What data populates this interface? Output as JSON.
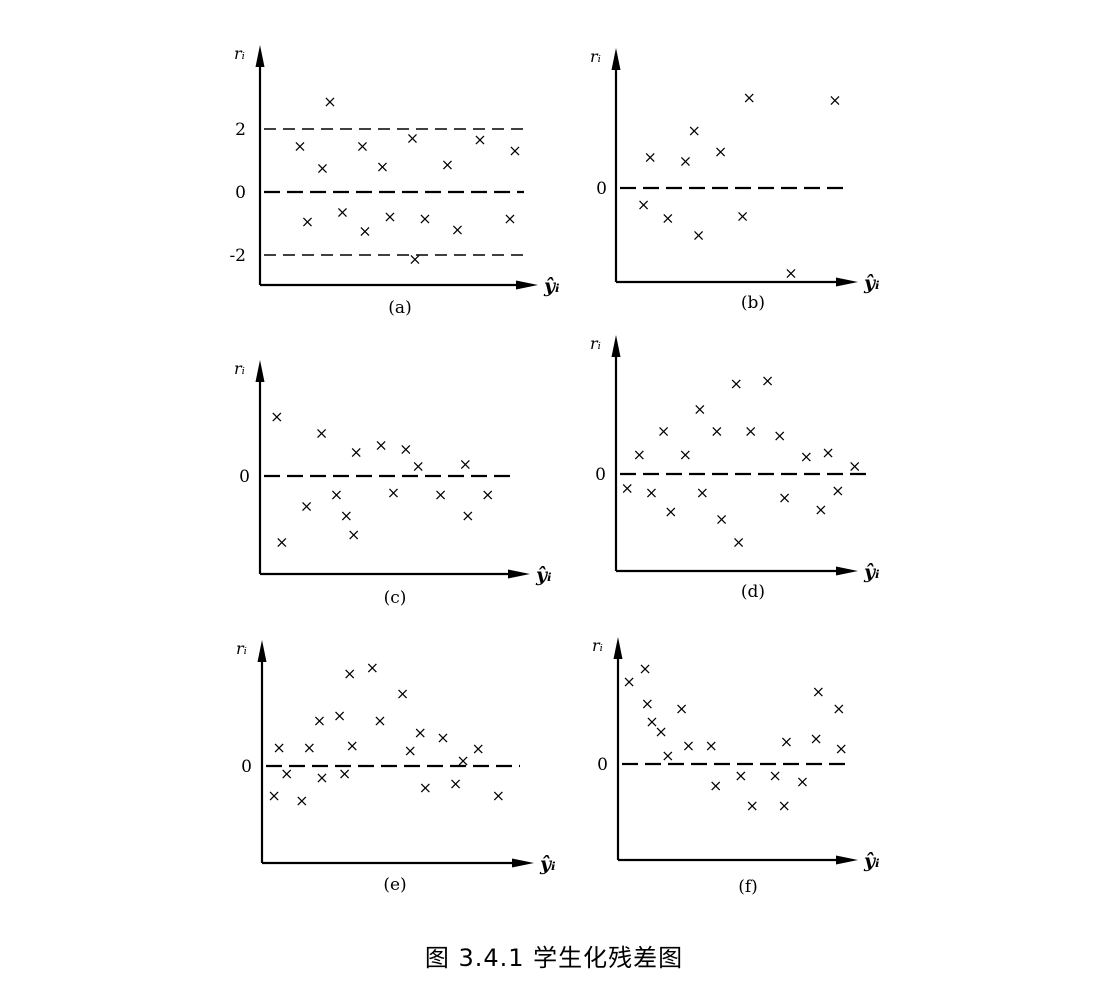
{
  "figure": {
    "caption": "图 3.4.1 学生化残差图"
  },
  "chart_data": [
    {
      "type": "scatter",
      "panel_label": "(a)",
      "ylabel": "rᵢ",
      "xlabel": "ŷᵢ",
      "y_ticks": [
        "2",
        "0",
        "-2"
      ],
      "reference_lines": [
        2,
        0,
        -2
      ],
      "marker": "x",
      "points": [
        {
          "x": 0.12,
          "y": 1.45
        },
        {
          "x": 0.21,
          "y": 0.75
        },
        {
          "x": 0.24,
          "y": 2.85
        },
        {
          "x": 0.37,
          "y": 1.45
        },
        {
          "x": 0.45,
          "y": 0.8
        },
        {
          "x": 0.57,
          "y": 1.7
        },
        {
          "x": 0.71,
          "y": 0.85
        },
        {
          "x": 0.84,
          "y": 1.65
        },
        {
          "x": 0.98,
          "y": 1.3
        },
        {
          "x": 0.15,
          "y": -0.95
        },
        {
          "x": 0.29,
          "y": -0.65
        },
        {
          "x": 0.38,
          "y": -1.25
        },
        {
          "x": 0.48,
          "y": -0.8
        },
        {
          "x": 0.62,
          "y": -0.85
        },
        {
          "x": 0.75,
          "y": -1.2
        },
        {
          "x": 0.96,
          "y": -0.85
        },
        {
          "x": 0.58,
          "y": -2.15
        }
      ]
    },
    {
      "type": "scatter",
      "panel_label": "(b)",
      "ylabel": "rᵢ",
      "xlabel": "ŷᵢ",
      "y_ticks": [
        "0"
      ],
      "reference_lines": [
        0
      ],
      "marker": "x",
      "points": [
        {
          "x": 0.11,
          "y": 0.32
        },
        {
          "x": 0.27,
          "y": 0.28
        },
        {
          "x": 0.31,
          "y": 0.6
        },
        {
          "x": 0.43,
          "y": 0.38
        },
        {
          "x": 0.56,
          "y": 0.95
        },
        {
          "x": 0.95,
          "y": 0.92
        },
        {
          "x": 0.08,
          "y": -0.18
        },
        {
          "x": 0.19,
          "y": -0.32
        },
        {
          "x": 0.33,
          "y": -0.5
        },
        {
          "x": 0.53,
          "y": -0.3
        },
        {
          "x": 0.75,
          "y": -0.9
        }
      ]
    },
    {
      "type": "scatter",
      "panel_label": "(c)",
      "ylabel": "rᵢ",
      "xlabel": "ŷᵢ",
      "y_ticks": [
        "0"
      ],
      "reference_lines": [
        0
      ],
      "marker": "x",
      "points": [
        {
          "x": 0.06,
          "y": 0.62
        },
        {
          "x": 0.08,
          "y": -0.7
        },
        {
          "x": 0.18,
          "y": -0.32
        },
        {
          "x": 0.24,
          "y": 0.45
        },
        {
          "x": 0.3,
          "y": -0.2
        },
        {
          "x": 0.34,
          "y": -0.42
        },
        {
          "x": 0.37,
          "y": -0.62
        },
        {
          "x": 0.38,
          "y": 0.25
        },
        {
          "x": 0.48,
          "y": 0.32
        },
        {
          "x": 0.53,
          "y": -0.18
        },
        {
          "x": 0.58,
          "y": 0.28
        },
        {
          "x": 0.63,
          "y": 0.1
        },
        {
          "x": 0.72,
          "y": -0.2
        },
        {
          "x": 0.82,
          "y": 0.12
        },
        {
          "x": 0.83,
          "y": -0.42
        },
        {
          "x": 0.91,
          "y": -0.2
        }
      ]
    },
    {
      "type": "scatter",
      "panel_label": "(d)",
      "ylabel": "rᵢ",
      "xlabel": "ŷᵢ",
      "y_ticks": [
        "0"
      ],
      "reference_lines": [
        0
      ],
      "marker": "x",
      "points": [
        {
          "x": 0.03,
          "y": -0.15
        },
        {
          "x": 0.08,
          "y": 0.2
        },
        {
          "x": 0.13,
          "y": -0.2
        },
        {
          "x": 0.18,
          "y": 0.45
        },
        {
          "x": 0.21,
          "y": -0.4
        },
        {
          "x": 0.27,
          "y": 0.2
        },
        {
          "x": 0.33,
          "y": 0.68
        },
        {
          "x": 0.34,
          "y": -0.2
        },
        {
          "x": 0.4,
          "y": 0.45
        },
        {
          "x": 0.42,
          "y": -0.48
        },
        {
          "x": 0.48,
          "y": 0.95
        },
        {
          "x": 0.49,
          "y": -0.72
        },
        {
          "x": 0.54,
          "y": 0.45
        },
        {
          "x": 0.61,
          "y": 0.98
        },
        {
          "x": 0.66,
          "y": 0.4
        },
        {
          "x": 0.68,
          "y": -0.25
        },
        {
          "x": 0.77,
          "y": 0.18
        },
        {
          "x": 0.83,
          "y": -0.38
        },
        {
          "x": 0.86,
          "y": 0.22
        },
        {
          "x": 0.9,
          "y": -0.18
        },
        {
          "x": 0.97,
          "y": 0.08
        }
      ]
    },
    {
      "type": "scatter",
      "panel_label": "(e)",
      "ylabel": "rᵢ",
      "xlabel": "ŷᵢ",
      "y_ticks": [
        "0"
      ],
      "reference_lines": [
        0
      ],
      "marker": "x",
      "points": [
        {
          "x": 0.04,
          "y": -0.3
        },
        {
          "x": 0.06,
          "y": 0.18
        },
        {
          "x": 0.09,
          "y": -0.08
        },
        {
          "x": 0.15,
          "y": -0.35
        },
        {
          "x": 0.18,
          "y": 0.18
        },
        {
          "x": 0.22,
          "y": 0.45
        },
        {
          "x": 0.23,
          "y": -0.12
        },
        {
          "x": 0.3,
          "y": 0.5
        },
        {
          "x": 0.32,
          "y": -0.08
        },
        {
          "x": 0.34,
          "y": 0.92
        },
        {
          "x": 0.35,
          "y": 0.2
        },
        {
          "x": 0.43,
          "y": 0.98
        },
        {
          "x": 0.46,
          "y": 0.45
        },
        {
          "x": 0.55,
          "y": 0.72
        },
        {
          "x": 0.58,
          "y": 0.15
        },
        {
          "x": 0.62,
          "y": 0.33
        },
        {
          "x": 0.64,
          "y": -0.22
        },
        {
          "x": 0.71,
          "y": 0.28
        },
        {
          "x": 0.76,
          "y": -0.18
        },
        {
          "x": 0.79,
          "y": 0.05
        },
        {
          "x": 0.85,
          "y": 0.17
        },
        {
          "x": 0.93,
          "y": -0.3
        }
      ]
    },
    {
      "type": "scatter",
      "panel_label": "(f)",
      "ylabel": "rᵢ",
      "xlabel": "ŷᵢ",
      "y_ticks": [
        "0"
      ],
      "reference_lines": [
        0
      ],
      "marker": "x",
      "points": [
        {
          "x": 0.04,
          "y": 0.82
        },
        {
          "x": 0.11,
          "y": 0.95
        },
        {
          "x": 0.12,
          "y": 0.6
        },
        {
          "x": 0.14,
          "y": 0.42
        },
        {
          "x": 0.18,
          "y": 0.32
        },
        {
          "x": 0.21,
          "y": 0.08
        },
        {
          "x": 0.27,
          "y": 0.55
        },
        {
          "x": 0.3,
          "y": 0.18
        },
        {
          "x": 0.4,
          "y": 0.18
        },
        {
          "x": 0.42,
          "y": -0.22
        },
        {
          "x": 0.53,
          "y": -0.12
        },
        {
          "x": 0.58,
          "y": -0.42
        },
        {
          "x": 0.68,
          "y": -0.12
        },
        {
          "x": 0.72,
          "y": -0.42
        },
        {
          "x": 0.73,
          "y": 0.22
        },
        {
          "x": 0.8,
          "y": -0.18
        },
        {
          "x": 0.86,
          "y": 0.25
        },
        {
          "x": 0.87,
          "y": 0.72
        },
        {
          "x": 0.96,
          "y": 0.55
        },
        {
          "x": 0.97,
          "y": 0.15
        }
      ]
    }
  ]
}
